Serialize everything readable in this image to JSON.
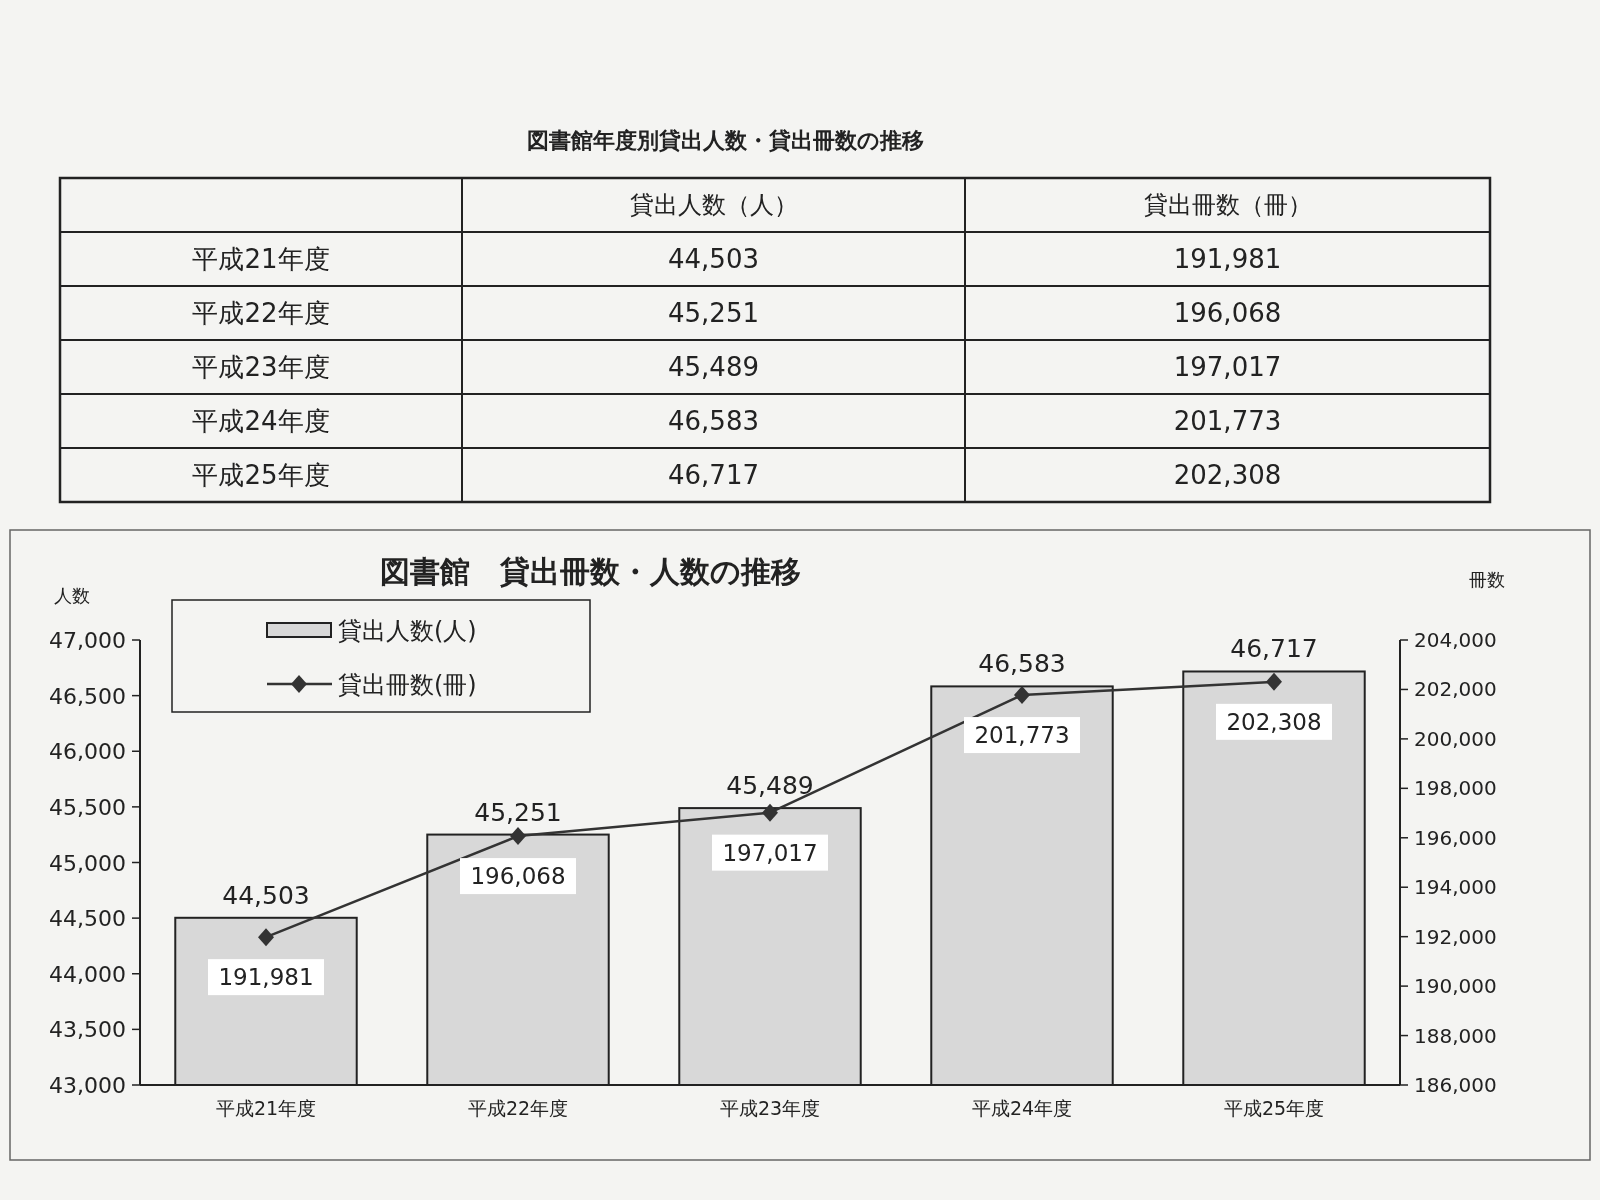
{
  "chart_data": {
    "type": "bar",
    "title": "図書館　貸出冊数・人数の推移",
    "ylabel": "人数",
    "y2label": "冊数",
    "annotations": [
      "図書館年度別貸出人数・貸出冊数の推移",
      "貸出人数（人）",
      "貸出冊数（冊）"
    ],
    "categories": [
      "平成21年度",
      "平成22年度",
      "平成23年度",
      "平成24年度",
      "平成25年度"
    ],
    "series": [
      {
        "name": "貸出人数(人)",
        "color": "#d8d8d8",
        "values": [
          44503,
          45251,
          45489,
          46583,
          46717
        ],
        "value_labels": [
          "44,503",
          "45,251",
          "45,489",
          "46,583",
          "46,717"
        ]
      },
      {
        "name": "貸出冊数(冊)",
        "type": "line",
        "axis": "y2",
        "color": "#333333",
        "values": [
          191981,
          196068,
          197017,
          201773,
          202308
        ],
        "value_labels": [
          "191,981",
          "196,068",
          "197,017",
          "201,773",
          "202,308"
        ]
      }
    ],
    "ylim": [
      43000,
      47000
    ],
    "yticks": [
      {
        "value": 43000,
        "label": "43,000"
      },
      {
        "value": 43500,
        "label": "43,500"
      },
      {
        "value": 44000,
        "label": "44,000"
      },
      {
        "value": 44500,
        "label": "44,500"
      },
      {
        "value": 45000,
        "label": "45,000"
      },
      {
        "value": 45500,
        "label": "45,500"
      },
      {
        "value": 46000,
        "label": "46,000"
      },
      {
        "value": 46500,
        "label": "46,500"
      },
      {
        "value": 47000,
        "label": "47,000"
      }
    ],
    "y2lim": [
      186000,
      204000
    ],
    "y2ticks": [
      {
        "value": 186000,
        "label": "186,000"
      },
      {
        "value": 188000,
        "label": "188,000"
      },
      {
        "value": 190000,
        "label": "190,000"
      },
      {
        "value": 192000,
        "label": "192,000"
      },
      {
        "value": 194000,
        "label": "194,000"
      },
      {
        "value": 196000,
        "label": "196,000"
      },
      {
        "value": 198000,
        "label": "198,000"
      },
      {
        "value": 200000,
        "label": "200,000"
      },
      {
        "value": 202000,
        "label": "202,000"
      },
      {
        "value": 204000,
        "label": "204,000"
      }
    ],
    "legend": "top left",
    "marker": "diamond",
    "line_style": "solid"
  }
}
